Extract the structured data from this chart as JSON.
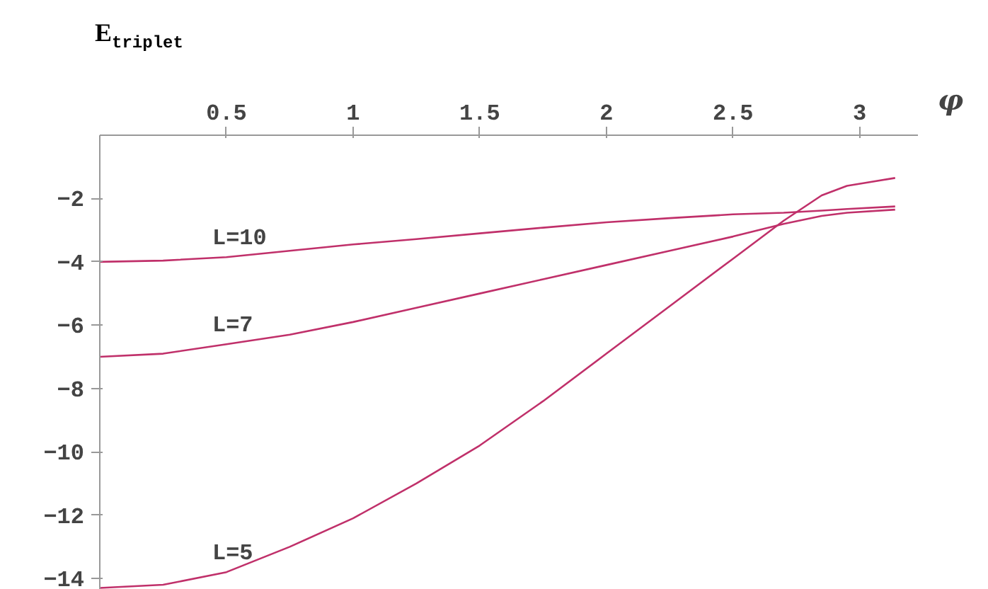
{
  "chart_data": {
    "type": "line",
    "xlabel": "φ",
    "ylabel": "E$_{triplet}$",
    "x": [
      0,
      0.25,
      0.5,
      0.75,
      1,
      1.25,
      1.5,
      1.75,
      2,
      2.25,
      2.5,
      2.7,
      2.85,
      2.95,
      3.14
    ],
    "series": [
      {
        "name": "L=10",
        "color": "#c0306a",
        "values": [
          -4.0,
          -3.96,
          -3.85,
          -3.65,
          -3.45,
          -3.28,
          -3.1,
          -2.92,
          -2.75,
          -2.62,
          -2.5,
          -2.45,
          -2.38,
          -2.33,
          -2.25
        ]
      },
      {
        "name": "L=7",
        "color": "#c0306a",
        "values": [
          -7.0,
          -6.9,
          -6.6,
          -6.3,
          -5.9,
          -5.45,
          -5.0,
          -4.55,
          -4.1,
          -3.65,
          -3.2,
          -2.8,
          -2.55,
          -2.45,
          -2.35
        ]
      },
      {
        "name": "L=5",
        "color": "#c0306a",
        "values": [
          -14.3,
          -14.2,
          -13.8,
          -13.0,
          -12.1,
          -11.0,
          -9.8,
          -8.4,
          -6.9,
          -5.4,
          -3.9,
          -2.7,
          -1.9,
          -1.6,
          -1.35
        ]
      }
    ],
    "xlim": [
      0,
      3.23
    ],
    "ylim": [
      -14.4,
      0
    ],
    "xticks": [
      0.5,
      1,
      1.5,
      2,
      2.5,
      3
    ],
    "yticks": [
      -2,
      -4,
      -6,
      -8,
      -10,
      -12,
      -14
    ],
    "grid": false,
    "marker": "none",
    "line_style": "solid"
  }
}
